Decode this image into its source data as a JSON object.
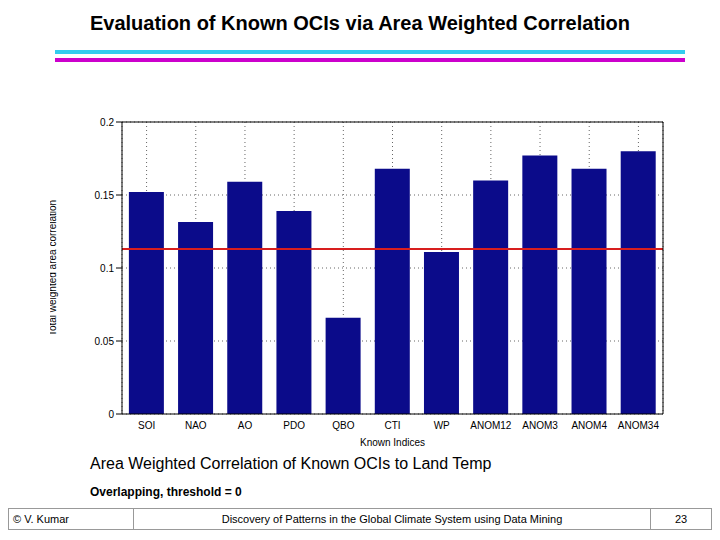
{
  "slide": {
    "title": "Evaluation of Known OCIs via Area Weighted Correlation",
    "caption": "Area Weighted Correlation of Known OCIs to Land Temp",
    "subcaption": "Overlapping, threshold = 0",
    "footer": {
      "left": "© V. Kumar",
      "center": "Discovery of Patterns in the Global Climate System using Data Mining",
      "right": "23"
    }
  },
  "chart_data": {
    "type": "bar",
    "x_label": "Known Indices",
    "y_label": "Total weighted area correlation",
    "categories": [
      "SOI",
      "NAO",
      "AO",
      "PDO",
      "QBO",
      "CTI",
      "WP",
      "ANOM12",
      "ANOM3",
      "ANOM4",
      "ANOM34"
    ],
    "values": [
      0.152,
      0.1315,
      0.159,
      0.139,
      0.066,
      0.168,
      0.111,
      0.16,
      0.177,
      0.168,
      0.18
    ],
    "color": "#0b0b8a",
    "ylim": [
      0,
      0.2
    ],
    "yticks": [
      0,
      0.05,
      0.1,
      0.15,
      0.2
    ],
    "grid": true,
    "reference_line": {
      "value": 0.113,
      "color": "#d81e1e"
    }
  }
}
